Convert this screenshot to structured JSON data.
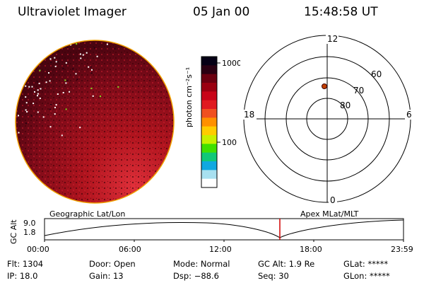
{
  "header": {
    "instrument": "Ultraviolet Imager",
    "date": "05 Jan 00",
    "time": "15:48:58 UT"
  },
  "colorbar": {
    "unit_label": "photon cm⁻²s⁻¹",
    "ticks": [
      "1000",
      "100"
    ],
    "colors": [
      "#050015",
      "#2a0012",
      "#6b0010",
      "#9a0010",
      "#c80418",
      "#e01a20",
      "#f05020",
      "#ff9000",
      "#ffcc00",
      "#c8f000",
      "#40e000",
      "#10c878",
      "#10a8e0",
      "#a8e0f0",
      "#ffffff"
    ]
  },
  "image_panel": {
    "background_color": "#7a0a18",
    "border_color": "#f0a000"
  },
  "polar_grid": {
    "mlt_labels": {
      "top": "12",
      "left": "18",
      "right": "6",
      "bottom": "0"
    },
    "lat_labels": [
      "60",
      "70",
      "80"
    ],
    "marker_color": "#c04000"
  },
  "timeline": {
    "left_title": "Geographic Lat/Lon",
    "right_title": "Apex MLat/MLT",
    "y_axis_label": "GC Alt",
    "y_ticks": [
      "9.0",
      "1.8"
    ],
    "x_ticks": [
      "00:00",
      "06:00",
      "12:00",
      "18:00",
      "23:59"
    ],
    "current_time_marker_color": "#d00000"
  },
  "status": {
    "flt": {
      "label": "Flt:",
      "value": "1304"
    },
    "ip": {
      "label": "IP:",
      "value": "18.0"
    },
    "door": {
      "label": "Door:",
      "value": "Open"
    },
    "gain": {
      "label": "Gain:",
      "value": "13"
    },
    "mode": {
      "label": "Mode:",
      "value": "Normal"
    },
    "dsp": {
      "label": "Dsp:",
      "value": "−88.6"
    },
    "gcalt": {
      "label": "GC Alt:",
      "value": "1.9 Re"
    },
    "seq": {
      "label": "Seq:",
      "value": "30"
    },
    "glat": {
      "label": "GLat:",
      "value": "*****"
    },
    "glon": {
      "label": "GLon:",
      "value": "*****"
    }
  }
}
